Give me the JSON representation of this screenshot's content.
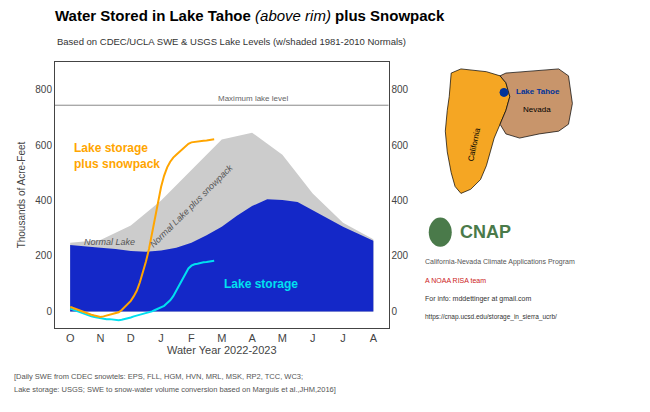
{
  "chart_data": {
    "type": "area",
    "title": [
      {
        "text": "Water Stored in Lake Tahoe",
        "style": "bold"
      },
      {
        "text": " (above rim) ",
        "style": "italic"
      },
      {
        "text": "plus Snowpack",
        "style": "bold"
      }
    ],
    "subtitle": "Based on CDEC/UCLA SWE & USGS Lake Levels (w/shaded 1981-2010 Normals)",
    "xlabel": "Water Year 2022-2023",
    "ylabel": "Thousands of Acre-Feet",
    "xlim": [
      -0.5,
      10.5
    ],
    "xticks": [
      {
        "value": 0,
        "label": "O"
      },
      {
        "value": 1,
        "label": "N"
      },
      {
        "value": 2,
        "label": "D"
      },
      {
        "value": 3,
        "label": "J"
      },
      {
        "value": 4,
        "label": "F"
      },
      {
        "value": 5,
        "label": "M"
      },
      {
        "value": 6,
        "label": "A"
      },
      {
        "value": 7,
        "label": "M"
      },
      {
        "value": 8,
        "label": "J"
      },
      {
        "value": 9,
        "label": "J"
      },
      {
        "value": 10,
        "label": "A"
      }
    ],
    "ylim": [
      -60,
      900
    ],
    "yticks": [
      0,
      200,
      400,
      600,
      800
    ],
    "y2lim": [
      -60,
      900
    ],
    "y2ticks": [
      0,
      200,
      400,
      600,
      800
    ],
    "grid": false,
    "legend": "none",
    "series": [
      {
        "name": "Normal Lake plus snowpack",
        "type": "area",
        "color": "#cccccc",
        "x": [
          0,
          1,
          2,
          3,
          4,
          5,
          6,
          7,
          8,
          9,
          10
        ],
        "values": [
          248,
          258,
          310,
          400,
          510,
          620,
          645,
          565,
          425,
          320,
          260
        ]
      },
      {
        "name": "Normal Lake",
        "type": "area",
        "color": "#cccccc",
        "x": [
          0,
          1,
          2,
          3,
          4,
          5,
          6,
          7,
          8,
          9,
          10
        ],
        "values": [
          240,
          232,
          220,
          220,
          248,
          300,
          375,
          400,
          365,
          300,
          255
        ]
      },
      {
        "type": "area",
        "color": "#1428c8",
        "x": [
          0,
          0.5,
          1,
          1.5,
          2,
          2.5,
          3,
          3.5,
          4,
          4.5,
          5,
          5.5,
          6,
          6.5,
          7,
          7.5,
          8,
          8.5,
          9,
          9.5,
          10
        ],
        "values": [
          240,
          236,
          230,
          225,
          218,
          215,
          220,
          230,
          248,
          275,
          305,
          345,
          380,
          405,
          402,
          395,
          365,
          335,
          305,
          280,
          255
        ]
      },
      {
        "name": "Lake storage",
        "type": "line",
        "color": "#00e0f0",
        "x": [
          0,
          0.05,
          0.1,
          0.15,
          0.2,
          0.25,
          0.3,
          0.35,
          0.4,
          0.5,
          0.6,
          0.7,
          0.8,
          0.9,
          1.0,
          1.1,
          1.2,
          1.3,
          1.4,
          1.5,
          1.6,
          1.7,
          1.8,
          1.9,
          2.0,
          2.1,
          2.2,
          2.3,
          2.4,
          2.5,
          2.6,
          2.7,
          2.8,
          2.9,
          3.0,
          3.1,
          3.2,
          3.3,
          3.4,
          3.5,
          3.6,
          3.7,
          3.8,
          3.9,
          4.0,
          4.1,
          4.2,
          4.3,
          4.4,
          4.5,
          4.6,
          4.7,
          4.75
        ],
        "values": [
          10,
          8,
          5,
          2,
          0,
          -2,
          -3,
          -5,
          -8,
          -10,
          -15,
          -18,
          -20,
          -22,
          -25,
          -25,
          -28,
          -28,
          -30,
          -30,
          -32,
          -30,
          -28,
          -25,
          -22,
          -18,
          -15,
          -12,
          -10,
          -8,
          -5,
          0,
          5,
          10,
          15,
          20,
          30,
          40,
          55,
          75,
          100,
          120,
          140,
          155,
          165,
          170,
          172,
          175,
          177,
          178,
          180,
          182,
          183
        ]
      },
      {
        "name": "Lake storage\nplus snowpack",
        "type": "line",
        "color": "#FFA500",
        "x": [
          0,
          0.05,
          0.1,
          0.15,
          0.2,
          0.25,
          0.3,
          0.35,
          0.4,
          0.5,
          0.6,
          0.7,
          0.8,
          0.9,
          1.0,
          1.1,
          1.2,
          1.3,
          1.4,
          1.5,
          1.6,
          1.7,
          1.8,
          1.9,
          2.0,
          2.1,
          2.2,
          2.3,
          2.4,
          2.5,
          2.6,
          2.7,
          2.8,
          2.9,
          3.0,
          3.1,
          3.2,
          3.3,
          3.4,
          3.5,
          3.6,
          3.7,
          3.8,
          3.9,
          4.0,
          4.1,
          4.2,
          4.3,
          4.4,
          4.5,
          4.6,
          4.7,
          4.75
        ],
        "values": [
          15,
          15,
          12,
          10,
          8,
          5,
          3,
          0,
          -2,
          -5,
          -10,
          -12,
          -15,
          -18,
          -20,
          -18,
          -15,
          -12,
          -8,
          -5,
          -3,
          5,
          15,
          25,
          38,
          55,
          75,
          105,
          140,
          180,
          225,
          280,
          340,
          395,
          450,
          490,
          520,
          540,
          555,
          565,
          575,
          585,
          595,
          605,
          610,
          612,
          613,
          615,
          616,
          617,
          618,
          620,
          621
        ]
      }
    ],
    "reference_lines": [
      {
        "y": 744,
        "label": "Maximum lake level",
        "color": "#888888"
      }
    ],
    "footnotes": [
      "[Daily SWE from CDEC snowtels: EPS, FLL, HGM, HVN, MRL, MSK, RP2, TCC, WC3;",
      "Lake storage: USGS; SWE to snow-water volume conversion based on Marguis et al.,JHM,2016]"
    ],
    "credits": [
      {
        "text": "California-Nevada Climate Applications Program",
        "color": "#555555"
      },
      {
        "text": "A NOAA RISA team",
        "color": "#cc2222"
      },
      {
        "text": "For info: mddettinger at gmail.com",
        "color": "#333333"
      },
      {
        "text": "https://cnap.ucsd.edu/storage_in_sierra_ucrb/",
        "color": "#333333"
      }
    ],
    "logo": {
      "text": "CNAP",
      "color": "#4a7a4a"
    },
    "map": [
      {
        "name": "California",
        "color": "#f5a623"
      },
      {
        "name": "Nevada",
        "color": "#c8956b"
      },
      {
        "name": "Lake Tahoe",
        "color": "#003399"
      }
    ]
  }
}
